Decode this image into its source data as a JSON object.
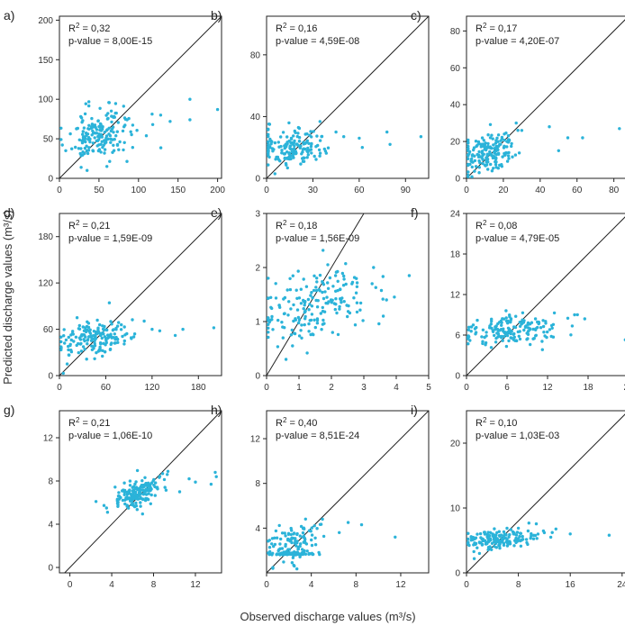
{
  "figure": {
    "ylabel": "Predicted discharge values (m³/s)",
    "xlabel": "Observed discharge values (m³/s)",
    "point_color": "#2bb3d9",
    "line_color": "#222222"
  },
  "chart_data": [
    {
      "type": "scatter",
      "label": "a)",
      "r2": "0,32",
      "pvalue": "p-value = 8,00E-15",
      "xlim": [
        0,
        205
      ],
      "ylim": [
        0,
        205
      ],
      "xticks": [
        "0",
        "50",
        "100",
        "150",
        "200"
      ],
      "yticks": [
        "0",
        "50",
        "100",
        "150",
        "200"
      ],
      "seed": 11,
      "n": 170,
      "clusters": [
        {
          "w": 0.93,
          "cx": 50,
          "sx": 22,
          "cy": 57,
          "sy": 17,
          "slope": 0.18
        }
      ],
      "outliers": [
        [
          165,
          74
        ],
        [
          165,
          100
        ],
        [
          200,
          87
        ],
        [
          118,
          68
        ],
        [
          128,
          80
        ],
        [
          140,
          72
        ],
        [
          8,
          35
        ],
        [
          35,
          10
        ],
        [
          60,
          15
        ]
      ]
    },
    {
      "type": "scatter",
      "label": "b)",
      "r2": "0,16",
      "pvalue": "p-value = 4,59E-08",
      "xlim": [
        0,
        105
      ],
      "ylim": [
        0,
        105
      ],
      "xticks": [
        "0",
        "30",
        "60",
        "90"
      ],
      "yticks": [
        "0",
        "40",
        "80"
      ],
      "seed": 22,
      "n": 170,
      "clusters": [
        {
          "w": 0.95,
          "cx": 16,
          "sx": 10,
          "cy": 20,
          "sy": 6,
          "slope": 0.08
        }
      ],
      "outliers": [
        [
          60,
          26
        ],
        [
          62,
          20
        ],
        [
          78,
          30
        ],
        [
          80,
          22
        ],
        [
          100,
          27
        ],
        [
          50,
          27
        ],
        [
          45,
          30
        ],
        [
          2,
          35
        ]
      ]
    },
    {
      "type": "scatter",
      "label": "c)",
      "r2": "0,17",
      "pvalue": "p-value = 4,20E-07",
      "xlim": [
        0,
        88
      ],
      "ylim": [
        0,
        88
      ],
      "xticks": [
        "0",
        "20",
        "40",
        "60",
        "80"
      ],
      "yticks": [
        "0",
        "20",
        "40",
        "60",
        "80"
      ],
      "seed": 33,
      "n": 170,
      "clusters": [
        {
          "w": 0.95,
          "cx": 12,
          "sx": 8,
          "cy": 14,
          "sy": 5,
          "slope": 0.15
        }
      ],
      "outliers": [
        [
          45,
          28
        ],
        [
          50,
          15
        ],
        [
          55,
          22
        ],
        [
          63,
          22
        ],
        [
          83,
          27
        ],
        [
          30,
          26
        ],
        [
          27,
          30
        ]
      ]
    },
    {
      "type": "scatter",
      "label": "d)",
      "r2": "0,21",
      "pvalue": "p-value = 1,59E-09",
      "xlim": [
        0,
        210
      ],
      "ylim": [
        0,
        210
      ],
      "xticks": [
        "0",
        "60",
        "120",
        "180"
      ],
      "yticks": [
        "0",
        "60",
        "120",
        "180"
      ],
      "seed": 44,
      "n": 170,
      "clusters": [
        {
          "w": 0.95,
          "cx": 45,
          "sx": 24,
          "cy": 50,
          "sy": 12,
          "slope": 0.15
        }
      ],
      "outliers": [
        [
          150,
          52
        ],
        [
          160,
          60
        ],
        [
          200,
          62
        ],
        [
          120,
          60
        ],
        [
          130,
          58
        ],
        [
          5,
          3
        ],
        [
          10,
          15
        ]
      ]
    },
    {
      "type": "scatter",
      "label": "e)",
      "r2": "0,18",
      "pvalue": "p-value = 1,56E-09",
      "xlim": [
        0,
        5
      ],
      "ylim": [
        0,
        3
      ],
      "xticks": [
        "0",
        "1",
        "2",
        "3",
        "4",
        "5"
      ],
      "yticks": [
        "0",
        "1",
        "2",
        "3"
      ],
      "seed": 55,
      "n": 190,
      "clusters": [
        {
          "w": 0.95,
          "cx": 1.5,
          "sx": 0.85,
          "cy": 1.35,
          "sy": 0.32,
          "slope": 0.12
        }
      ],
      "outliers": [
        [
          4.4,
          1.85
        ],
        [
          3.6,
          1.1
        ],
        [
          3.7,
          1.4
        ],
        [
          3.3,
          2.0
        ],
        [
          0.6,
          0.3
        ],
        [
          0.8,
          0.55
        ]
      ]
    },
    {
      "type": "scatter",
      "label": "f)",
      "r2": "0,08",
      "pvalue": "p-value = 4,79E-05",
      "xlim": [
        0,
        24
      ],
      "ylim": [
        0,
        24
      ],
      "xticks": [
        "0",
        "6",
        "12",
        "18",
        "24"
      ],
      "yticks": [
        "0",
        "6",
        "12",
        "18",
        "24"
      ],
      "seed": 66,
      "n": 170,
      "clusters": [
        {
          "w": 0.95,
          "cx": 7,
          "sx": 3.6,
          "cy": 6.8,
          "sy": 1.0,
          "slope": 0.06
        }
      ],
      "outliers": [
        [
          23.5,
          5.3
        ],
        [
          17.5,
          8.4
        ],
        [
          16,
          9
        ],
        [
          15,
          8.5
        ],
        [
          0.5,
          5.2
        ],
        [
          1,
          7.5
        ]
      ]
    },
    {
      "type": "scatter",
      "label": "g)",
      "r2": "0,21",
      "pvalue": "p-value = 1,06E-10",
      "xlim": [
        -1,
        14.5
      ],
      "ylim": [
        -0.5,
        14.5
      ],
      "xticks": [
        "0",
        "4",
        "8",
        "12"
      ],
      "yticks": [
        "0",
        "4",
        "8",
        "12"
      ],
      "seed": 77,
      "n": 170,
      "clusters": [
        {
          "w": 0.95,
          "cx": 6.5,
          "sx": 1.2,
          "cy": 6.9,
          "sy": 0.6,
          "slope": 0.35
        }
      ],
      "outliers": [
        [
          13.9,
          8.8
        ],
        [
          14,
          8.4
        ],
        [
          13.5,
          7.7
        ],
        [
          12,
          7.9
        ],
        [
          11.4,
          8.2
        ],
        [
          2.5,
          6.1
        ],
        [
          3.5,
          5.5
        ],
        [
          10.5,
          7
        ]
      ]
    },
    {
      "type": "scatter",
      "label": "h)",
      "r2": "0,40",
      "pvalue": "p-value = 8,51E-24",
      "xlim": [
        0,
        14.5
      ],
      "ylim": [
        0,
        14.5
      ],
      "xticks": [
        "0",
        "4",
        "8",
        "12"
      ],
      "yticks": [
        "4",
        "8",
        "12"
      ],
      "seed": 88,
      "n": 180,
      "clusters": [
        {
          "w": 0.42,
          "cx": 2.2,
          "sx": 1.1,
          "cy": 1.7,
          "sy": 0.06,
          "slope": 0
        },
        {
          "w": 0.58,
          "cx": 2.6,
          "sx": 1.1,
          "cy": 2.8,
          "sy": 0.85,
          "slope": 0.25
        }
      ],
      "outliers": [
        [
          11.5,
          3.2
        ],
        [
          8.5,
          4.3
        ],
        [
          7.3,
          4.5
        ],
        [
          6.5,
          3.6
        ],
        [
          5,
          4.8
        ],
        [
          0.3,
          1.9
        ]
      ]
    },
    {
      "type": "scatter",
      "label": "i)",
      "r2": "0,10",
      "pvalue": "p-value = 1,03E-03",
      "xlim": [
        0,
        25
      ],
      "ylim": [
        0,
        25
      ],
      "xticks": [
        "0",
        "8",
        "16",
        "24"
      ],
      "yticks": [
        "0",
        "10",
        "20"
      ],
      "seed": 99,
      "n": 170,
      "clusters": [
        {
          "w": 0.95,
          "cx": 5,
          "sx": 2.8,
          "cy": 5.3,
          "sy": 0.75,
          "slope": 0.05
        }
      ],
      "outliers": [
        [
          22,
          5.8
        ],
        [
          16,
          6
        ],
        [
          13,
          5.5
        ],
        [
          12,
          6.2
        ],
        [
          1.2,
          2.2
        ],
        [
          2,
          3
        ]
      ]
    }
  ]
}
